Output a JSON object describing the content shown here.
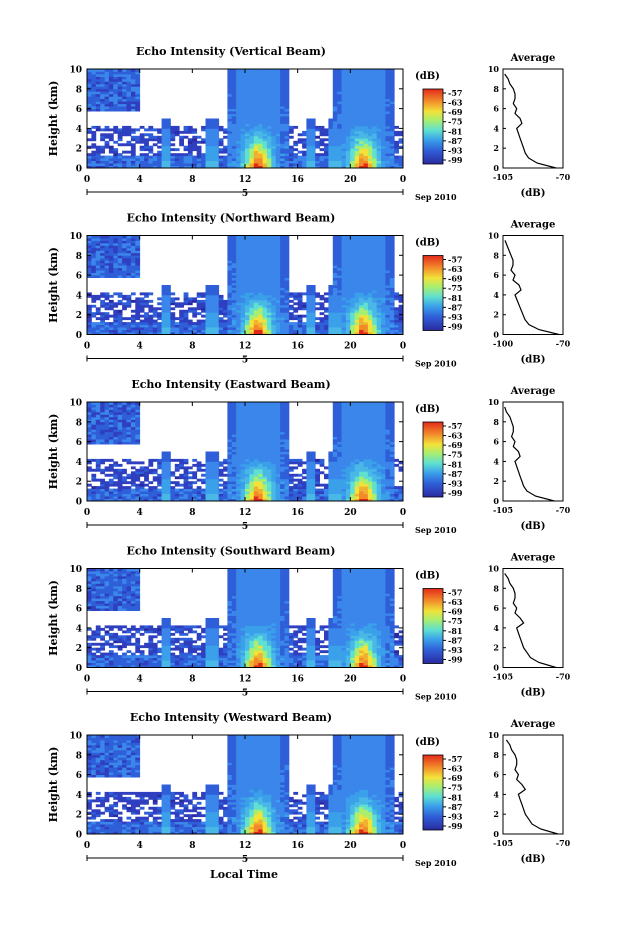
{
  "figure": {
    "xlabel": "Local Time",
    "date_label": "Sep 2010",
    "day_label": "5",
    "colorbar_unit": "(dB)",
    "colorbar_ticks": [
      "-57",
      "-63",
      "-69",
      "-75",
      "-81",
      "-87",
      "-93",
      "-99"
    ],
    "profile_title": "Average",
    "profile_xlabel": "(dB)",
    "ylabel": "Height (km)",
    "colors": {
      "low": "#2a2aa0",
      "mid": "#4ab8e6",
      "cyan": "#5fe0d0",
      "yellow": "#f2e23a",
      "orange": "#f28a2a",
      "red": "#e22a1a"
    }
  },
  "chart_data": [
    {
      "type": "heatmap",
      "title": "Echo Intensity (Vertical Beam)",
      "xlabel": "",
      "ylabel": "Height (km)",
      "x_ticks": [
        "0",
        "4",
        "8",
        "12",
        "16",
        "20",
        "0"
      ],
      "y_ticks": [
        "0",
        "2",
        "4",
        "6",
        "8",
        "10"
      ],
      "xlim": [
        0,
        24
      ],
      "ylim": [
        0,
        10
      ],
      "colorbar_range": [
        -99,
        -57
      ],
      "profile": {
        "title": "Average",
        "xlabel": "(dB)",
        "xlim": [
          -105,
          -70
        ],
        "x_ticks": [
          "-105",
          "-70"
        ],
        "height": [
          0,
          0.5,
          1,
          1.5,
          2,
          2.5,
          3,
          3.5,
          4,
          4.5,
          5,
          5.5,
          6,
          6.5,
          7,
          7.5,
          8,
          8.5,
          9,
          9.5
        ],
        "value": [
          -74,
          -85,
          -90,
          -92,
          -93,
          -94,
          -95,
          -96,
          -97,
          -94,
          -95,
          -98,
          -97,
          -99,
          -98,
          -98,
          -99,
          -101,
          -102,
          -104
        ]
      }
    },
    {
      "type": "heatmap",
      "title": "Echo Intensity (Northward Beam)",
      "xlabel": "",
      "ylabel": "Height (km)",
      "x_ticks": [
        "0",
        "4",
        "8",
        "12",
        "16",
        "20",
        "0"
      ],
      "y_ticks": [
        "0",
        "2",
        "4",
        "6",
        "8",
        "10"
      ],
      "xlim": [
        0,
        24
      ],
      "ylim": [
        0,
        10
      ],
      "colorbar_range": [
        -99,
        -57
      ],
      "profile": {
        "title": "Average",
        "xlabel": "(dB)",
        "xlim": [
          -100,
          -70
        ],
        "x_ticks": [
          "-100",
          "-70"
        ],
        "height": [
          0,
          0.5,
          1,
          1.5,
          2,
          2.5,
          3,
          3.5,
          4,
          4.5,
          5,
          5.5,
          6,
          6.5,
          7,
          7.5,
          8,
          8.5,
          9,
          9.5
        ],
        "value": [
          -72,
          -82,
          -87,
          -89,
          -90,
          -91,
          -92,
          -93,
          -94,
          -91,
          -92,
          -95,
          -94,
          -96,
          -95,
          -95,
          -96,
          -97,
          -98,
          -99
        ]
      }
    },
    {
      "type": "heatmap",
      "title": "Echo Intensity (Eastward Beam)",
      "xlabel": "",
      "ylabel": "Height (km)",
      "x_ticks": [
        "0",
        "4",
        "8",
        "12",
        "16",
        "20",
        "0"
      ],
      "y_ticks": [
        "0",
        "2",
        "4",
        "6",
        "8",
        "10"
      ],
      "xlim": [
        0,
        24
      ],
      "ylim": [
        0,
        10
      ],
      "colorbar_range": [
        -99,
        -57
      ],
      "profile": {
        "title": "Average",
        "xlabel": "(dB)",
        "xlim": [
          -105,
          -70
        ],
        "x_ticks": [
          "-105",
          "-70"
        ],
        "height": [
          0,
          0.5,
          1,
          1.5,
          2,
          2.5,
          3,
          3.5,
          4,
          4.5,
          5,
          5.5,
          6,
          6.5,
          7,
          7.5,
          8,
          8.5,
          9,
          9.5
        ],
        "value": [
          -75,
          -86,
          -91,
          -93,
          -94,
          -95,
          -96,
          -97,
          -98,
          -95,
          -96,
          -99,
          -98,
          -100,
          -99,
          -99,
          -100,
          -101,
          -103,
          -104
        ]
      }
    },
    {
      "type": "heatmap",
      "title": "Echo Intensity (Southward Beam)",
      "xlabel": "",
      "ylabel": "Height (km)",
      "x_ticks": [
        "0",
        "4",
        "8",
        "12",
        "16",
        "20",
        "0"
      ],
      "y_ticks": [
        "0",
        "2",
        "4",
        "6",
        "8",
        "10"
      ],
      "xlim": [
        0,
        24
      ],
      "ylim": [
        0,
        10
      ],
      "colorbar_range": [
        -99,
        -57
      ],
      "profile": {
        "title": "Average",
        "xlabel": "(dB)",
        "xlim": [
          -105,
          -70
        ],
        "x_ticks": [
          "-105",
          "-70"
        ],
        "height": [
          0,
          0.5,
          1,
          1.5,
          2,
          2.5,
          3,
          3.5,
          4,
          4.5,
          5,
          5.5,
          6,
          6.5,
          7,
          7.5,
          8,
          8.5,
          9,
          9.5
        ],
        "value": [
          -74,
          -84,
          -89,
          -91,
          -93,
          -94,
          -95,
          -96,
          -97,
          -93,
          -95,
          -98,
          -97,
          -99,
          -98,
          -98,
          -99,
          -101,
          -102,
          -104
        ]
      }
    },
    {
      "type": "heatmap",
      "title": "Echo Intensity (Westward Beam)",
      "xlabel": "Local Time",
      "ylabel": "Height (km)",
      "x_ticks": [
        "0",
        "4",
        "8",
        "12",
        "16",
        "20",
        "0"
      ],
      "y_ticks": [
        "0",
        "2",
        "4",
        "6",
        "8",
        "10"
      ],
      "xlim": [
        0,
        24
      ],
      "ylim": [
        0,
        10
      ],
      "colorbar_range": [
        -99,
        -57
      ],
      "profile": {
        "title": "Average",
        "xlabel": "(dB)",
        "xlim": [
          -105,
          -70
        ],
        "x_ticks": [
          "-105",
          "-70"
        ],
        "height": [
          0,
          0.5,
          1,
          1.5,
          2,
          2.5,
          3,
          3.5,
          4,
          4.5,
          5,
          5.5,
          6,
          6.5,
          7,
          7.5,
          8,
          8.5,
          9,
          9.5
        ],
        "value": [
          -73,
          -83,
          -88,
          -90,
          -92,
          -93,
          -94,
          -95,
          -96,
          -92,
          -94,
          -97,
          -96,
          -98,
          -97,
          -97,
          -98,
          -100,
          -101,
          -103
        ]
      }
    }
  ]
}
